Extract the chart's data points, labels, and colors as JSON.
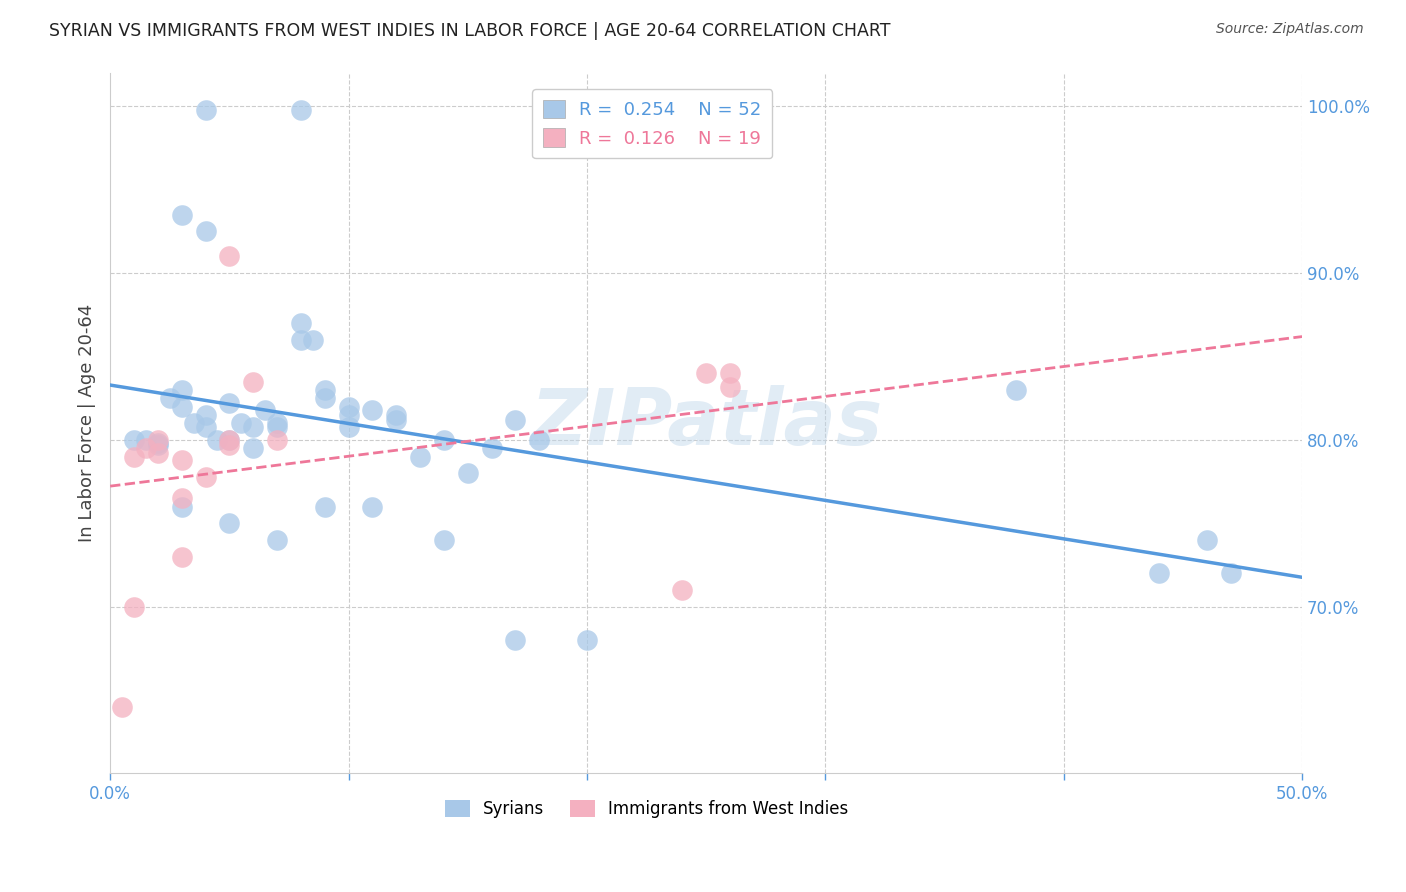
{
  "title": "SYRIAN VS IMMIGRANTS FROM WEST INDIES IN LABOR FORCE | AGE 20-64 CORRELATION CHART",
  "source": "Source: ZipAtlas.com",
  "ylabel": "In Labor Force | Age 20-64",
  "xlim": [
    0.0,
    0.5
  ],
  "ylim": [
    0.6,
    1.02
  ],
  "xtick_values": [
    0.0,
    0.1,
    0.2,
    0.3,
    0.4,
    0.5
  ],
  "xtick_labels": [
    "0.0%",
    "",
    "",
    "",
    "",
    "50.0%"
  ],
  "ytick_values": [
    0.7,
    0.8,
    0.9,
    1.0
  ],
  "ytick_labels": [
    "70.0%",
    "80.0%",
    "90.0%",
    "100.0%"
  ],
  "blue_color": "#A8C8E8",
  "pink_color": "#F4B0C0",
  "line_blue": "#5599DD",
  "line_pink": "#EE7799",
  "tick_color": "#5599DD",
  "legend_blue_R": "0.254",
  "legend_blue_N": "52",
  "legend_pink_R": "0.126",
  "legend_pink_N": "19",
  "blue_scatter_x": [
    0.04,
    0.08,
    0.03,
    0.04,
    0.01,
    0.015,
    0.02,
    0.02,
    0.025,
    0.03,
    0.03,
    0.035,
    0.04,
    0.04,
    0.045,
    0.05,
    0.05,
    0.055,
    0.06,
    0.06,
    0.065,
    0.07,
    0.07,
    0.08,
    0.08,
    0.085,
    0.09,
    0.09,
    0.1,
    0.1,
    0.1,
    0.11,
    0.12,
    0.12,
    0.13,
    0.14,
    0.15,
    0.16,
    0.17,
    0.18,
    0.03,
    0.05,
    0.07,
    0.09,
    0.11,
    0.14,
    0.17,
    0.2,
    0.38,
    0.44,
    0.46,
    0.47
  ],
  "blue_scatter_y": [
    0.998,
    0.998,
    0.935,
    0.925,
    0.8,
    0.8,
    0.798,
    0.797,
    0.825,
    0.83,
    0.82,
    0.81,
    0.815,
    0.808,
    0.8,
    0.822,
    0.8,
    0.81,
    0.808,
    0.795,
    0.818,
    0.81,
    0.808,
    0.87,
    0.86,
    0.86,
    0.83,
    0.825,
    0.82,
    0.815,
    0.808,
    0.818,
    0.812,
    0.815,
    0.79,
    0.8,
    0.78,
    0.795,
    0.812,
    0.8,
    0.76,
    0.75,
    0.74,
    0.76,
    0.76,
    0.74,
    0.68,
    0.68,
    0.83,
    0.72,
    0.74,
    0.72
  ],
  "pink_scatter_x": [
    0.005,
    0.01,
    0.015,
    0.02,
    0.02,
    0.03,
    0.03,
    0.04,
    0.05,
    0.05,
    0.06,
    0.07,
    0.25,
    0.26,
    0.01,
    0.03,
    0.05,
    0.24,
    0.26
  ],
  "pink_scatter_y": [
    0.64,
    0.79,
    0.795,
    0.8,
    0.792,
    0.788,
    0.765,
    0.778,
    0.8,
    0.797,
    0.835,
    0.8,
    0.84,
    0.832,
    0.7,
    0.73,
    0.91,
    0.71,
    0.84
  ],
  "watermark": "ZIPatlas",
  "background_color": "#ffffff",
  "grid_color": "#cccccc"
}
